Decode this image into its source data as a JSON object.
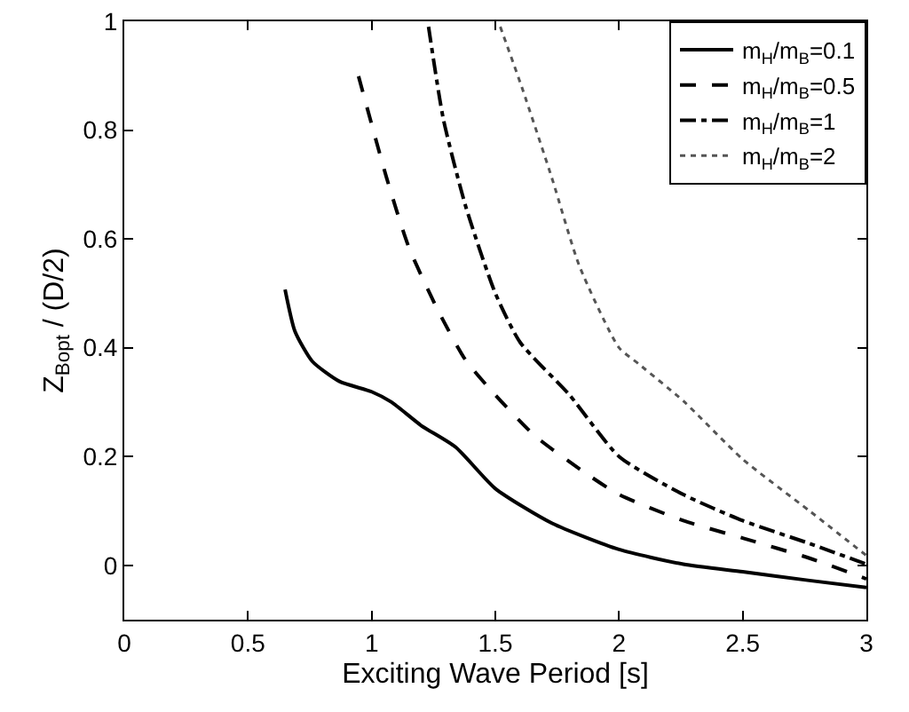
{
  "chart_data": {
    "type": "line",
    "xlabel": "Exciting Wave Period [s]",
    "ylabel": "Z$_{B}$$_{opt}$ / (D/2)",
    "xlim": [
      0,
      3
    ],
    "xticks": [
      0,
      0.5,
      1,
      1.5,
      2,
      2.5,
      3
    ],
    "ylim": [
      -0.1,
      1
    ],
    "yticks": [
      0,
      0.2,
      0.4,
      0.6,
      0.8,
      1
    ],
    "grid": false,
    "legend": "top right",
    "marker": "none",
    "series": [
      {
        "name": "m$_{H}$/m$_{B}$=0.1",
        "color": "#000000",
        "line_style": "solid",
        "x": [
          0.65,
          0.69,
          0.76,
          0.87,
          1.0,
          1.08,
          1.2,
          1.34,
          1.5,
          1.73,
          2.0,
          2.26,
          2.5,
          2.77,
          3.0
        ],
        "values": [
          0.507,
          0.43,
          0.375,
          0.338,
          0.319,
          0.3,
          0.257,
          0.217,
          0.141,
          0.077,
          0.029,
          0.002,
          -0.012,
          -0.028,
          -0.041
        ]
      },
      {
        "name": "m$_{H}$/m$_{B}$=0.5",
        "color": "#000000",
        "line_style": "dashed",
        "x": [
          0.947,
          1.06,
          1.15,
          1.27,
          1.38,
          1.5,
          1.66,
          1.85,
          2.0,
          2.26,
          2.5,
          2.77,
          3.0
        ],
        "values": [
          0.899,
          0.713,
          0.585,
          0.467,
          0.377,
          0.313,
          0.238,
          0.174,
          0.13,
          0.082,
          0.05,
          0.013,
          -0.025
        ]
      },
      {
        "name": "m$_{H}$/m$_{B}$=1",
        "color": "#000000",
        "line_style": "dashdot",
        "x": [
          1.23,
          1.29,
          1.38,
          1.5,
          1.6,
          1.8,
          2.0,
          2.26,
          2.5,
          2.77,
          3.0
        ],
        "values": [
          0.99,
          0.82,
          0.66,
          0.5,
          0.41,
          0.313,
          0.2,
          0.13,
          0.082,
          0.04,
          0.002
        ]
      },
      {
        "name": "m$_{H}$/m$_{B}$=2",
        "color": "#555555",
        "line_style": "dotted",
        "x": [
          1.52,
          1.61,
          1.73,
          1.84,
          2.0,
          2.08,
          2.26,
          2.5,
          2.77,
          3.0
        ],
        "values": [
          0.99,
          0.875,
          0.71,
          0.55,
          0.4,
          0.37,
          0.302,
          0.195,
          0.1,
          0.018
        ]
      }
    ]
  }
}
